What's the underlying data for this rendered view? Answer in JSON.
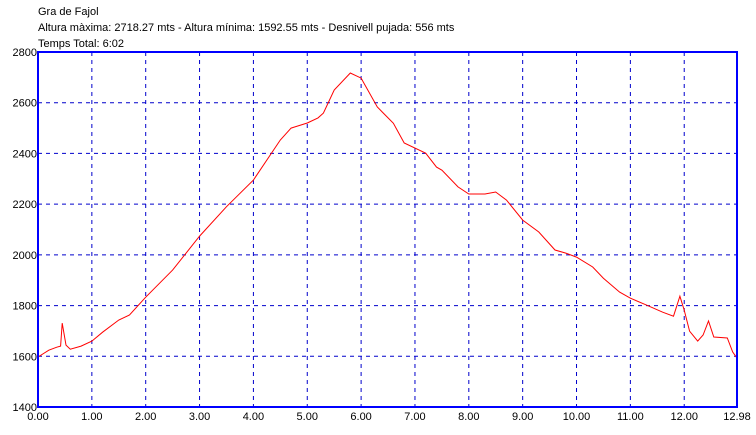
{
  "header": {
    "title": "Gra de Fajol",
    "stats": "Altura màxima: 2718.27 mts - Altura mínima: 1592.55 mts - Desnivell pujada: 556 mts",
    "time": "Temps Total:  6:02"
  },
  "colors": {
    "axis": "#0000ff",
    "grid": "#0000cc",
    "line": "#ff0000"
  },
  "chart_data": {
    "type": "line",
    "title": "Gra de Fajol",
    "xlabel": "",
    "ylabel": "",
    "xlim": [
      0,
      12.98
    ],
    "ylim": [
      1400,
      2800
    ],
    "grid": true,
    "x_ticks": [
      0,
      1,
      2,
      3,
      4,
      5,
      6,
      7,
      8,
      9,
      10,
      11,
      12,
      12.98
    ],
    "x_tick_labels": [
      "0.00",
      "1.00",
      "2.00",
      "3.00",
      "4.00",
      "5.00",
      "6.00",
      "7.00",
      "8.00",
      "9.00",
      "10.00",
      "11.00",
      "12.00",
      "12.98"
    ],
    "y_ticks": [
      1400,
      1600,
      1800,
      2000,
      2200,
      2400,
      2600,
      2800
    ],
    "y_tick_labels": [
      "1400",
      "1600",
      "1800",
      "2000",
      "2200",
      "2400",
      "2600",
      "2800"
    ],
    "series": [
      {
        "x": [
          0,
          0.2,
          0.35,
          0.42,
          0.45,
          0.52,
          0.6,
          0.8,
          1.0,
          1.2,
          1.5,
          1.7,
          2.0,
          2.5,
          3.0,
          3.5,
          4.0,
          4.5,
          4.7,
          5.0,
          5.2,
          5.3,
          5.5,
          5.8,
          6.0,
          6.3,
          6.6,
          6.8,
          7.2,
          7.4,
          7.5,
          7.8,
          8.0,
          8.3,
          8.5,
          8.7,
          9.0,
          9.3,
          9.6,
          9.8,
          10.0,
          10.3,
          10.5,
          10.8,
          11.0,
          11.3,
          11.6,
          11.8,
          11.92,
          12.0,
          12.1,
          12.25,
          12.35,
          12.45,
          12.55,
          12.8,
          12.9,
          12.98
        ],
        "y": [
          1597,
          1624,
          1636,
          1640,
          1731,
          1644,
          1628,
          1640,
          1660,
          1695,
          1743,
          1763,
          1833,
          1940,
          2074,
          2190,
          2295,
          2453,
          2500,
          2520,
          2540,
          2559,
          2650,
          2717,
          2697,
          2583,
          2519,
          2441,
          2401,
          2346,
          2334,
          2268,
          2240,
          2240,
          2248,
          2216,
          2137,
          2090,
          2019,
          2007,
          1991,
          1952,
          1908,
          1853,
          1829,
          1802,
          1774,
          1758,
          1837,
          1782,
          1699,
          1660,
          1684,
          1739,
          1676,
          1672,
          1617,
          1593
        ]
      }
    ]
  }
}
